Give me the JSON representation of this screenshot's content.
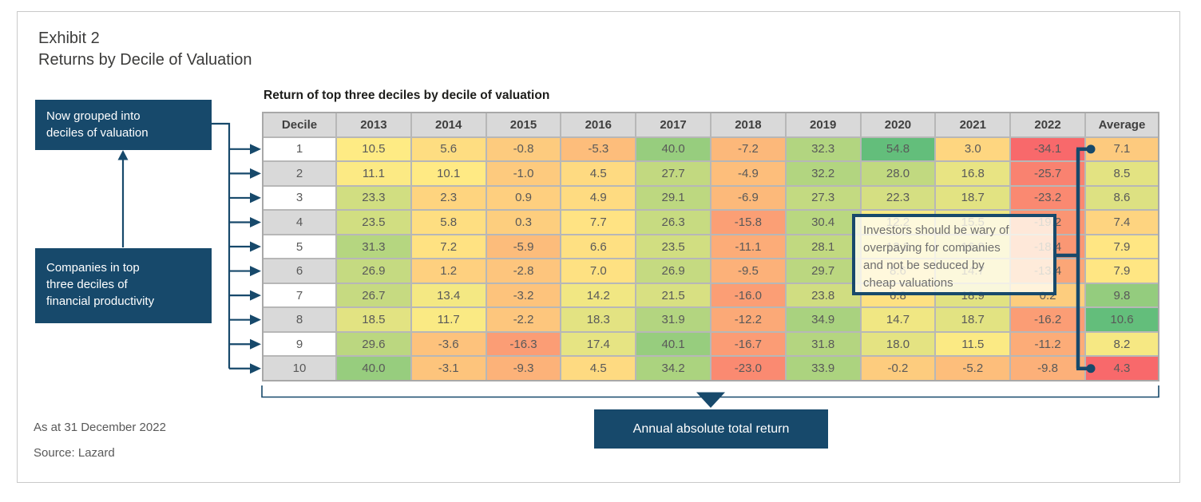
{
  "page": {
    "exhibit_label": "Exhibit 2",
    "title": "Returns by Decile of Valuation",
    "table_caption": "Return of top three deciles by decile of valuation",
    "as_at": "As at 31 December 2022",
    "source": "Source: Lazard"
  },
  "callouts": {
    "grouping_note_lines": [
      "Now grouped into",
      "deciles of valuation"
    ],
    "universe_note_lines": [
      "Companies in top",
      "three deciles of",
      "financial productivity"
    ],
    "axis_note": "Annual absolute total return",
    "tooltip_lines": [
      "Investors should be wary of",
      "overpaying for companies",
      "and not be seduced by",
      "cheap valuations"
    ]
  },
  "colors": {
    "accent_blue": "#17496B",
    "heat_min_red": "#F8696B",
    "heat_mid_yellow": "#FFEB84",
    "heat_max_green": "#63BE7B",
    "header_fill": "#D9D9D9",
    "grid_line": "#B7B7B7",
    "cell_text": "#595959"
  },
  "chart_data": {
    "type": "heatmap",
    "title": "Return of top three deciles by decile of valuation",
    "row_header": "Decile",
    "columns": [
      "2013",
      "2014",
      "2015",
      "2016",
      "2017",
      "2018",
      "2019",
      "2020",
      "2021",
      "2022"
    ],
    "average_label": "Average",
    "rows": [
      {
        "decile": "1",
        "values": [
          10.5,
          5.6,
          -0.8,
          -5.3,
          40.0,
          -7.2,
          32.3,
          54.8,
          3.0,
          -34.1
        ],
        "average": 7.1
      },
      {
        "decile": "2",
        "values": [
          11.1,
          10.1,
          -1.0,
          4.5,
          27.7,
          -4.9,
          32.2,
          28.0,
          16.8,
          -25.7
        ],
        "average": 8.5
      },
      {
        "decile": "3",
        "values": [
          23.3,
          2.3,
          0.9,
          4.9,
          29.1,
          -6.9,
          27.3,
          22.3,
          18.7,
          -23.2
        ],
        "average": 8.6
      },
      {
        "decile": "4",
        "values": [
          23.5,
          5.8,
          0.3,
          7.7,
          26.3,
          -15.8,
          30.4,
          12.2,
          15.5,
          -19.2
        ],
        "average": 7.4
      },
      {
        "decile": "5",
        "values": [
          31.3,
          7.2,
          -5.9,
          6.6,
          23.5,
          -11.1,
          28.1,
          13.2,
          16.8,
          -18.4
        ],
        "average": 7.9
      },
      {
        "decile": "6",
        "values": [
          26.9,
          1.2,
          -2.8,
          7.0,
          26.9,
          -9.5,
          29.7,
          8.6,
          14.7,
          -13.4
        ],
        "average": 7.9
      },
      {
        "decile": "7",
        "values": [
          26.7,
          13.4,
          -3.2,
          14.2,
          21.5,
          -16.0,
          23.8,
          6.8,
          18.9,
          0.2
        ],
        "average": 9.8
      },
      {
        "decile": "8",
        "values": [
          18.5,
          11.7,
          -2.2,
          18.3,
          31.9,
          -12.2,
          34.9,
          14.7,
          18.7,
          -16.2
        ],
        "average": 10.6
      },
      {
        "decile": "9",
        "values": [
          29.6,
          -3.6,
          -16.3,
          17.4,
          40.1,
          -16.7,
          31.8,
          18.0,
          11.5,
          -11.2
        ],
        "average": 8.2
      },
      {
        "decile": "10",
        "values": [
          40.0,
          -3.1,
          -9.3,
          4.5,
          34.2,
          -23.0,
          33.9,
          -0.2,
          -5.2,
          -9.8
        ],
        "average": 4.3
      }
    ],
    "color_scale": {
      "min_color": "#F8696B",
      "mid_color": "#FFEB84",
      "max_color": "#63BE7B",
      "midpoint": "median",
      "note": "Average column uses its own min/median/max scale"
    },
    "highlight": {
      "top_average": 7.1,
      "bottom_average": 4.3
    },
    "legend_position": "none",
    "grid": true
  }
}
